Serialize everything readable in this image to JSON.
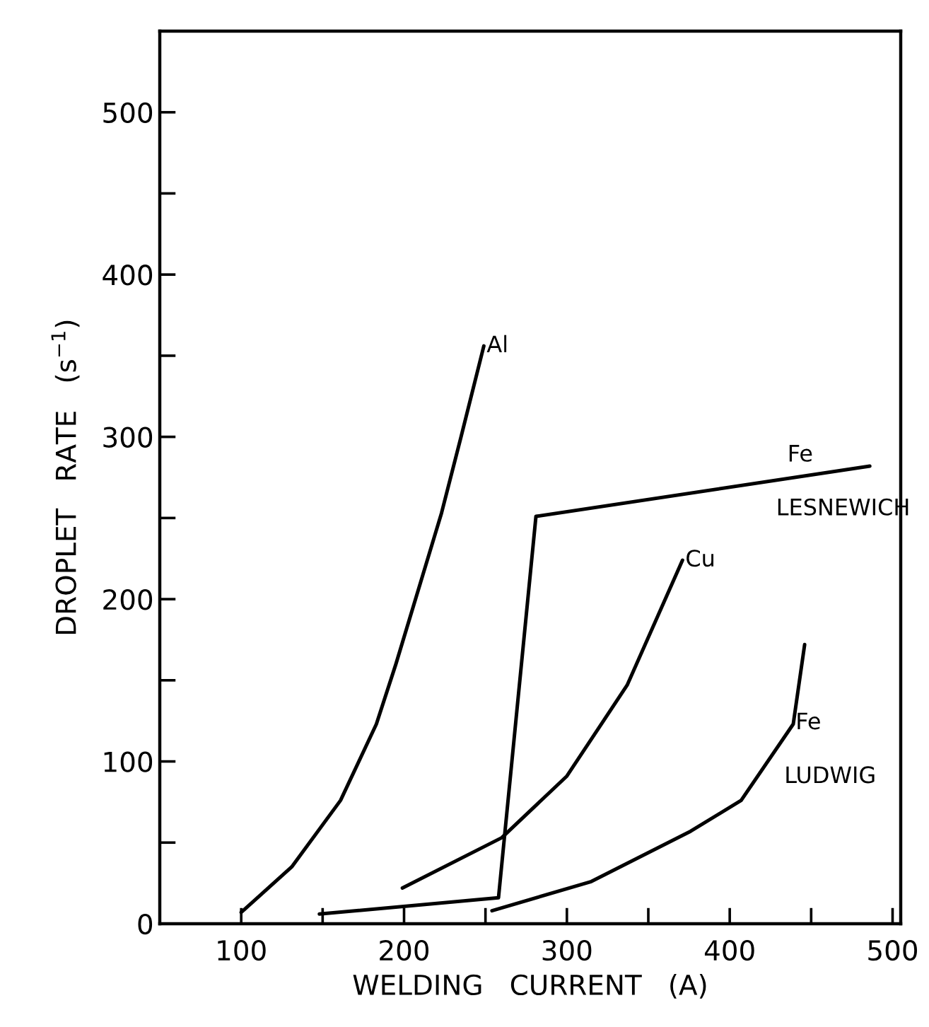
{
  "chart_data": {
    "type": "line",
    "xlabel": "WELDING   CURRENT   (A)",
    "ylabel": "DROPLET   RATE   (s$^{−1}$)",
    "xlim": [
      50,
      505
    ],
    "ylim": [
      0,
      550
    ],
    "xticks": [
      100,
      {
        "value": 150,
        "label": null
      },
      200,
      {
        "value": 250,
        "label": null
      },
      300,
      {
        "value": 350,
        "label": null
      },
      400,
      {
        "value": 450,
        "label": null
      },
      500
    ],
    "yticks": [
      0,
      {
        "value": 50,
        "label": null
      },
      100,
      {
        "value": 150,
        "label": null
      },
      200,
      {
        "value": 250,
        "label": null
      },
      300,
      {
        "value": 350,
        "label": null
      },
      400,
      {
        "value": 450,
        "label": null
      },
      500
    ],
    "grid": false,
    "marker": "none",
    "line_style": "solid",
    "series": [
      {
        "color": "#000000",
        "x": [
          100,
          131,
          161,
          183,
          195,
          223,
          235,
          249
        ],
        "values": [
          7,
          35,
          76,
          123,
          160,
          253,
          300,
          356
        ]
      },
      {
        "color": "#000000",
        "x": [
          148,
          258,
          281,
          486
        ],
        "values": [
          6,
          16,
          251,
          282
        ]
      },
      {
        "color": "#000000",
        "x": [
          199,
          260,
          300,
          337,
          371
        ],
        "values": [
          22,
          53,
          91,
          147,
          224
        ]
      },
      {
        "color": "#000000",
        "x": [
          254,
          315,
          376,
          407,
          439,
          446
        ],
        "values": [
          8,
          26,
          57,
          76,
          123,
          172
        ]
      }
    ],
    "annotations": [
      {
        "text": "Al",
        "x": 249,
        "y": 356
      },
      {
        "text": "Cu",
        "x": 371,
        "y": 224
      },
      {
        "text": "Fe",
        "x": 425,
        "y": 273
      },
      {
        "text": "LESNEWICH",
        "x": 425,
        "y": 273
      },
      {
        "text": "Fe",
        "x": 430,
        "y": 108
      },
      {
        "text": "LUDWIG",
        "x": 430,
        "y": 108
      }
    ]
  }
}
